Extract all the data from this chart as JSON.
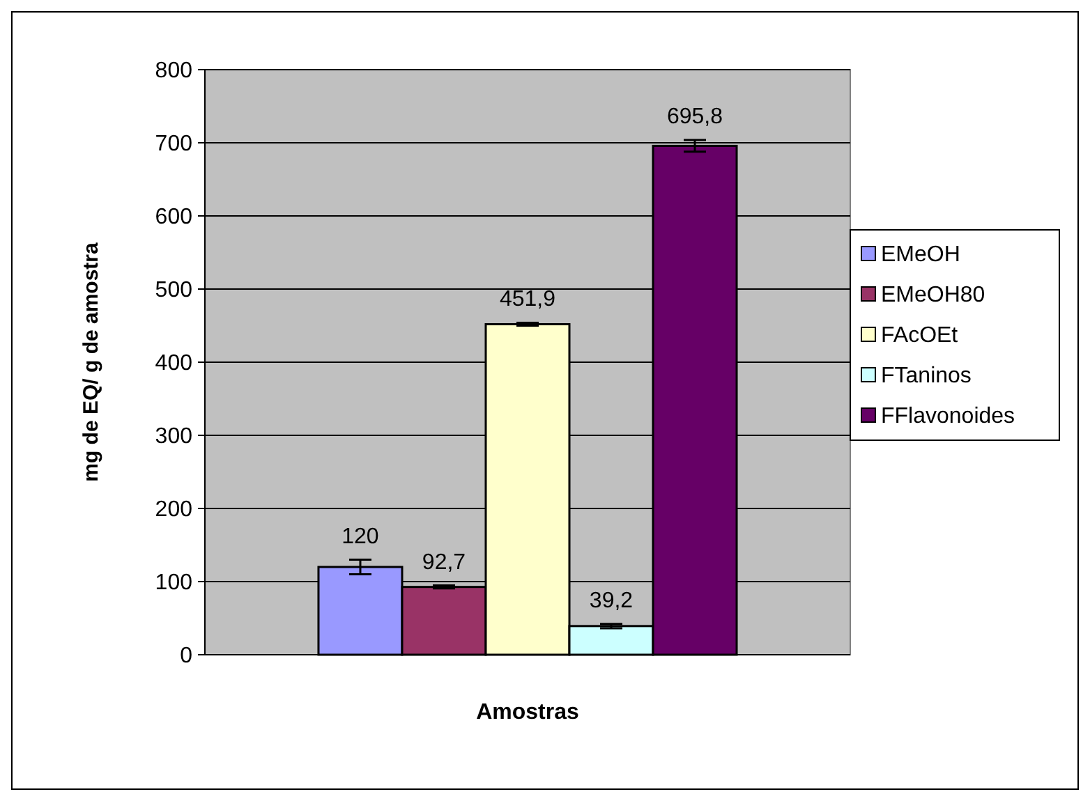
{
  "chart_data": {
    "type": "bar",
    "xlabel": "Amostras",
    "ylabel": "mg de EQ/ g de amostra",
    "categories": [
      null
    ],
    "series": [
      {
        "name": "EMeOH",
        "color": "#9999ff",
        "values": [
          120
        ],
        "errors": [
          10
        ],
        "value_labels": [
          "120"
        ]
      },
      {
        "name": "EMeOH80",
        "color": "#993366",
        "values": [
          92.7
        ],
        "errors": [
          2
        ],
        "value_labels": [
          "92,7"
        ]
      },
      {
        "name": "FAcOEt",
        "color": "#ffffcc",
        "values": [
          451.9
        ],
        "errors": [
          2
        ],
        "value_labels": [
          "451,9"
        ]
      },
      {
        "name": "FTaninos",
        "color": "#ccffff",
        "values": [
          39.2
        ],
        "errors": [
          3
        ],
        "value_labels": [
          "39,2"
        ]
      },
      {
        "name": "FFlavonoides",
        "color": "#660066",
        "values": [
          695.8
        ],
        "errors": [
          8
        ],
        "value_labels": [
          "695,8"
        ]
      }
    ],
    "ylim": [
      0,
      800
    ],
    "yticks": [
      0,
      100,
      200,
      300,
      400,
      500,
      600,
      700,
      800
    ],
    "grid": "y",
    "legend": "right"
  }
}
